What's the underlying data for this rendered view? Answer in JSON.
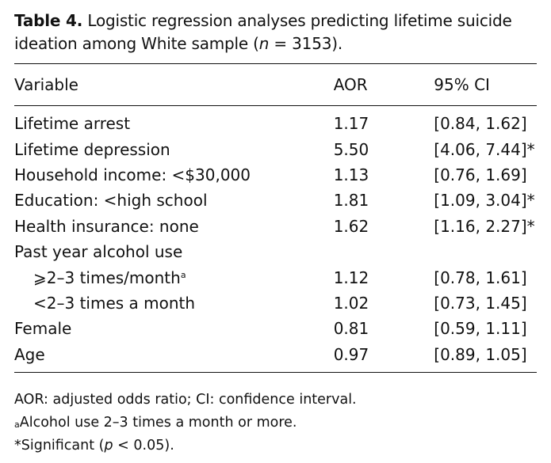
{
  "caption": {
    "label": "Table 4.",
    "text_before_n": "Logistic regression analyses predicting lifetime suicide ideation among White sample (",
    "n_symbol": "n",
    "text_after_n": " = 3153)."
  },
  "table": {
    "headers": [
      "Variable",
      "AOR",
      "95% CI"
    ],
    "rows": [
      {
        "variable": "Lifetime arrest",
        "aor": "1.17",
        "ci": "[0.84, 1.62]",
        "mark": ""
      },
      {
        "variable": "Lifetime depression",
        "aor": "5.50",
        "ci": "[4.06, 7.44]",
        "mark": "*"
      },
      {
        "variable": "Household income: <$30,000",
        "aor": "1.13",
        "ci": "[0.76, 1.69]",
        "mark": ""
      },
      {
        "variable": "Education: <high school",
        "aor": "1.81",
        "ci": "[1.09, 3.04]",
        "mark": "*"
      },
      {
        "variable": "Health insurance: none",
        "aor": "1.62",
        "ci": "[1.16, 2.27]",
        "mark": "*"
      },
      {
        "variable": "Past year alcohol use",
        "aor": "",
        "ci": "",
        "mark": ""
      },
      {
        "variable": "⩾2–3 times/month",
        "sup": "a",
        "aor": "1.12",
        "ci": "[0.78, 1.61]",
        "mark": "",
        "indent": true
      },
      {
        "variable": "<2–3 times a month",
        "aor": "1.02",
        "ci": "[0.73, 1.45]",
        "mark": "",
        "indent": true
      },
      {
        "variable": "Female",
        "aor": "0.81",
        "ci": "[0.59, 1.11]",
        "mark": ""
      },
      {
        "variable": "Age",
        "aor": "0.97",
        "ci": "[0.89, 1.05]",
        "mark": ""
      }
    ]
  },
  "notes": {
    "abbrev": "AOR: adjusted odds ratio; CI: confidence interval.",
    "footnote_a_marker": "a",
    "footnote_a_text": "Alcohol use 2–3 times a month or more.",
    "significance_before_p": "*Significant (",
    "p_symbol": "p",
    "significance_after_p": " < 0.05)."
  }
}
